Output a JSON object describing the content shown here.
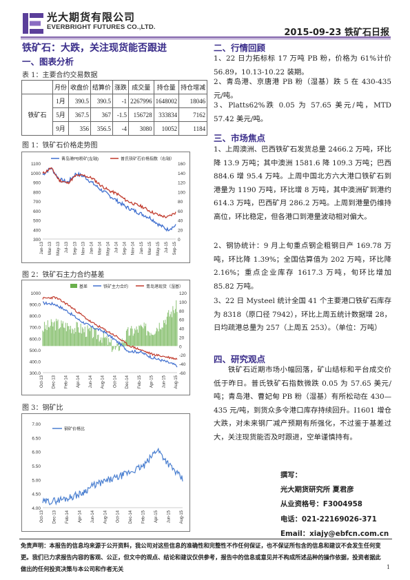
{
  "header": {
    "brand_cn": "光大期货有限公司",
    "brand_en": "EVERBRIGHT FUTURES CO.,LTD.",
    "report_title": "2015-09-23 铁矿石日报"
  },
  "headline": "铁矿石：大跌，关注现货能否跟进",
  "sections": {
    "chart_analysis": "一、图表分析",
    "market_review": "二、行情回顾",
    "market_focus": "三、市场焦点",
    "research_view": "四、研究观点"
  },
  "table1": {
    "caption": "表 1：主要合约交易数据",
    "headers": [
      "月份",
      "收盘价",
      "结算价",
      "涨跌",
      "成交量",
      "持仓量",
      "持仓增减"
    ],
    "row_label": "铁矿石",
    "rows": [
      [
        "1月",
        "390.5",
        "390.5",
        "-1",
        "2267996",
        "1648002",
        "18046"
      ],
      [
        "5月",
        "367.5",
        "367",
        "-1.5",
        "156728",
        "333834",
        "7162"
      ],
      [
        "9月",
        "356",
        "356.5",
        "-4",
        "3080",
        "10052",
        "1184"
      ]
    ]
  },
  "colors": {
    "accent": "#3a2d8a",
    "rule": "#7a5aa6",
    "series_blue": "#3f6fcf",
    "series_red": "#c0392b",
    "basis_green": "#6ab04c",
    "ratio_blue": "#4a7fd0"
  },
  "chart_data": [
    {
      "type": "line",
      "caption": "图 1：铁矿石价格走势图",
      "x": [
        "Jan-13",
        "Mar-13",
        "May-13",
        "Jul-13",
        "Sep-13",
        "Nov-13",
        "Jan-14",
        "Mar-14",
        "May-14",
        "Jul-14",
        "Sep-14",
        "Nov-14",
        "Jan-15",
        "Mar-15",
        "May-15",
        "Jul-15",
        "Sep-15"
      ],
      "y_left_ticks": [
        "1100",
        "1000",
        "900",
        "800",
        "700",
        "600",
        "500",
        "400",
        "300"
      ],
      "y_right_ticks": [
        "160",
        "140",
        "120",
        "100",
        "80",
        "60",
        "40",
        "20",
        "0"
      ],
      "ylim_left": [
        300,
        1100
      ],
      "ylim_right": [
        0,
        160
      ],
      "legend_placement": "top",
      "series": [
        {
          "name": "青岛港PB粉矿(左轴)",
          "axis": "left",
          "values": [
            980,
            1050,
            930,
            900,
            990,
            960,
            890,
            820,
            760,
            700,
            640,
            600,
            560,
            520,
            450,
            400,
            440
          ]
        },
        {
          "name": "普氏铁矿石价格指数（右轴）",
          "axis": "right",
          "values": [
            138,
            150,
            124,
            118,
            134,
            134,
            128,
            113,
            102,
            95,
            82,
            74,
            68,
            58,
            50,
            46,
            56
          ]
        }
      ]
    },
    {
      "type": "line",
      "caption": "图 2：铁矿石主力合约基差",
      "x": [
        "Oct-13",
        "Dec-13",
        "Feb-14",
        "Apr-14",
        "Jun-14",
        "Aug-14",
        "Oct-14",
        "Dec-14",
        "Feb-15",
        "Apr-15",
        "Jun-15",
        "Aug-15"
      ],
      "y_left_ticks": [
        "1000",
        "900.0",
        "800.0",
        "700.0",
        "600.0",
        "500.0",
        "400.0",
        "300.0"
      ],
      "y_right_ticks": [
        "120",
        "100",
        "80",
        "60",
        "40",
        "20",
        "0",
        "-20",
        "-40",
        "-60"
      ],
      "ylim_left": [
        300,
        1000
      ],
      "ylim_right": [
        -60,
        120
      ],
      "legend_placement": "top",
      "series": [
        {
          "name": "基差",
          "axis": "right",
          "values": [
            40,
            50,
            45,
            40,
            30,
            20,
            -10,
            30,
            40,
            35,
            60,
            90
          ]
        },
        {
          "name": "铁矿主力合约",
          "axis": "left",
          "values": [
            910,
            900,
            840,
            760,
            700,
            660,
            580,
            490,
            480,
            430,
            400,
            360
          ]
        },
        {
          "name": "青岛港现货（湿基）",
          "axis": "left",
          "values": [
            950,
            960,
            900,
            820,
            740,
            680,
            620,
            540,
            500,
            460,
            440,
            420
          ]
        }
      ]
    },
    {
      "type": "line",
      "caption": "图 3：钢矿比",
      "x": [
        "Oct-13",
        "Dec-13",
        "Feb-14",
        "Apr-14",
        "Jun-14",
        "Aug-14",
        "Oct-14",
        "Dec-14",
        "Feb-15",
        "Apr-15",
        "Jun-15",
        "Aug-15"
      ],
      "y_ticks": [
        "7.00",
        "6.50",
        "6.00",
        "5.50",
        "5.00",
        "4.50",
        "4.00"
      ],
      "ylim": [
        4.0,
        7.0
      ],
      "legend_placement": "top-left",
      "series": [
        {
          "name": "钢矿价格比",
          "values": [
            4.2,
            4.25,
            4.35,
            4.5,
            4.8,
            4.95,
            5.1,
            5.3,
            5.5,
            6.1,
            5.5,
            5.0
          ]
        }
      ]
    }
  ],
  "right": {
    "review": [
      "1、22 日力拓标标 17 万吨 PB 粉，价格为 61%计价 56.89，10.13-10.22 装期。",
      "2、青岛港、京唐港 PB 粉（湿基）跌 5 在 430-435 元/吨。",
      "3、Platts62%跌 0.05 为 57.65 美元/吨，MTD 57.42 美元/吨。"
    ],
    "focus": [
      "1、上周澳洲、巴西铁矿石发货总量 2466.2 万吨，环比降 13.9 万吨；其中澳洲 1581.6 降 109.3 万吨；巴西 884.6 增 95.4 万吨。上周中国北方六大港口铁矿石到港量为 1190 万吨，环比增 8 万吨，其中澳洲矿到港约 614.3 万吨，巴西矿月 286.2 万吨。上周到港量仍维持高位，环比稳定，但各港口到港量波动相对偏大。",
      "2、钢协统计：9 月上旬重点钢企粗钢日产 169.78 万吨，环比降 1.39%；全国估算值为 202 万吨，环比降 2.16%；重点企业库存 1617.3 万吨，旬环比增加 85.82 万吨。",
      "3、22 日 Mysteel 统计全国 41 个主要港口铁矿石库存为 8318（原口径 7942），环比上周五统计数据增 28，日均疏港总量为 257（上周五 253）。（单位：万吨）"
    ],
    "view": "铁矿石近期市场小幅回落，矿山结标和平台成交价低于昨日。普氏铁矿石指数微跌 0.05 为 57.65 美元/吨；青岛港、曹妃甸 PB 粉（湿基）有所松动在 430—435 元/吨，到货众多令港口库存持续回升。I1601 增仓大跌，对未来钢厂减产预期有所强化，不过鉴于基差过大，关注现货能否及时跟进，空单谨慎持有。"
  },
  "author": {
    "title": "撰写：",
    "org": "光大期货研究所 夏君彦",
    "license": "从业资格号：F3004958",
    "phone": "电话：021-22169026-371",
    "email": "Email：xiajy@ebfcn.com.cn"
  },
  "footer": {
    "disclaimer": "免责声明：本报告的信息均来源于公开资料，我公司对这些信息的准确性和完整性不作任何保证，也不保证所包含的信息和建议不会发生任何变更。我们已力求报告内容的客观、公正，但文中的观点、结论和建议仅供参考，报告中的信息或意见并不构成所述品种的操作依据，投资者据此做出的任何投资决策与本公司和作者无关",
    "page": "1"
  }
}
